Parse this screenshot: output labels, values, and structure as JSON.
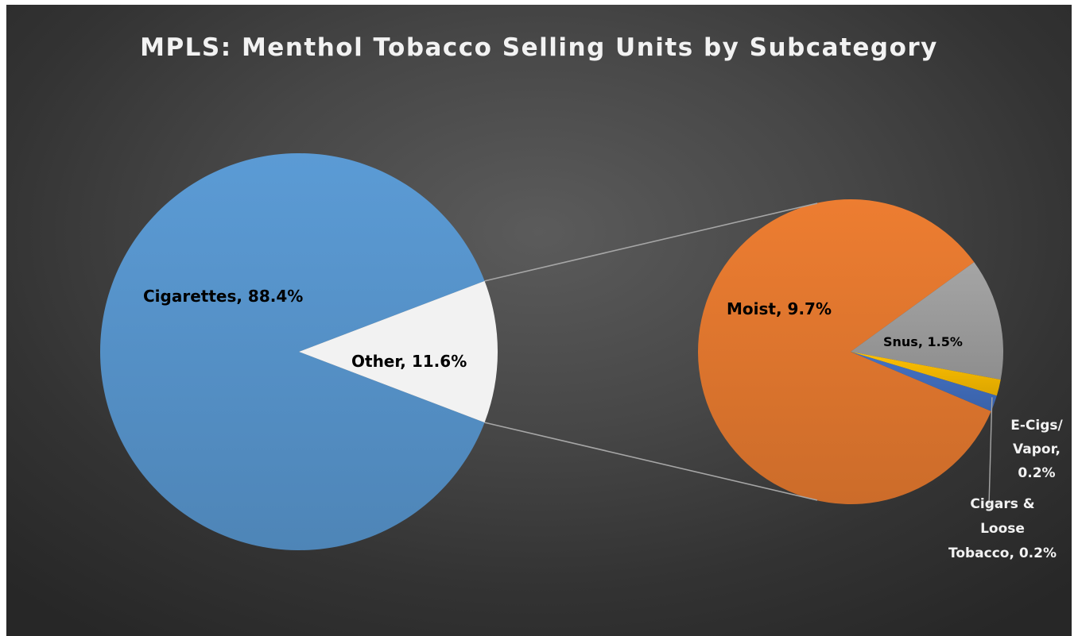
{
  "chart_data": {
    "type": "pie",
    "subtype": "pie-of-pie",
    "title": "MPLS: Menthol Tobacco Selling Units by Subcategory",
    "primary": {
      "slices": [
        {
          "name": "Cigarettes",
          "value": 88.4,
          "label": "Cigarettes, 88.4%",
          "color": "#5b9bd5"
        },
        {
          "name": "Other",
          "value": 11.6,
          "label": "Other, 11.6%",
          "color": "#f2f2f2"
        }
      ]
    },
    "secondary": {
      "breakout_of": "Other",
      "slices": [
        {
          "name": "Moist",
          "value": 9.7,
          "label": "Moist, 9.7%",
          "color": "#ed7d31"
        },
        {
          "name": "Snus",
          "value": 1.5,
          "label": "Snus, 1.5%",
          "color": "#a5a5a5"
        },
        {
          "name": "E-Cigs/ Vapor",
          "value": 0.2,
          "label_lines": [
            "E-Cigs/",
            "Vapor,",
            "0.2%"
          ],
          "color": "#ffc000"
        },
        {
          "name": "Cigars & Loose Tobacco",
          "value": 0.2,
          "label_lines": [
            "Cigars &",
            "Loose",
            "Tobacco, 0.2%"
          ],
          "color": "#4472c4"
        }
      ]
    },
    "legend": "none",
    "data_labels": "category name and percentage",
    "colors": {
      "background": "#404040",
      "connector": "#a6a6a6",
      "title": "#f2f2f2",
      "dark_label": "#000000",
      "light_label": "#f2f2f2"
    }
  }
}
